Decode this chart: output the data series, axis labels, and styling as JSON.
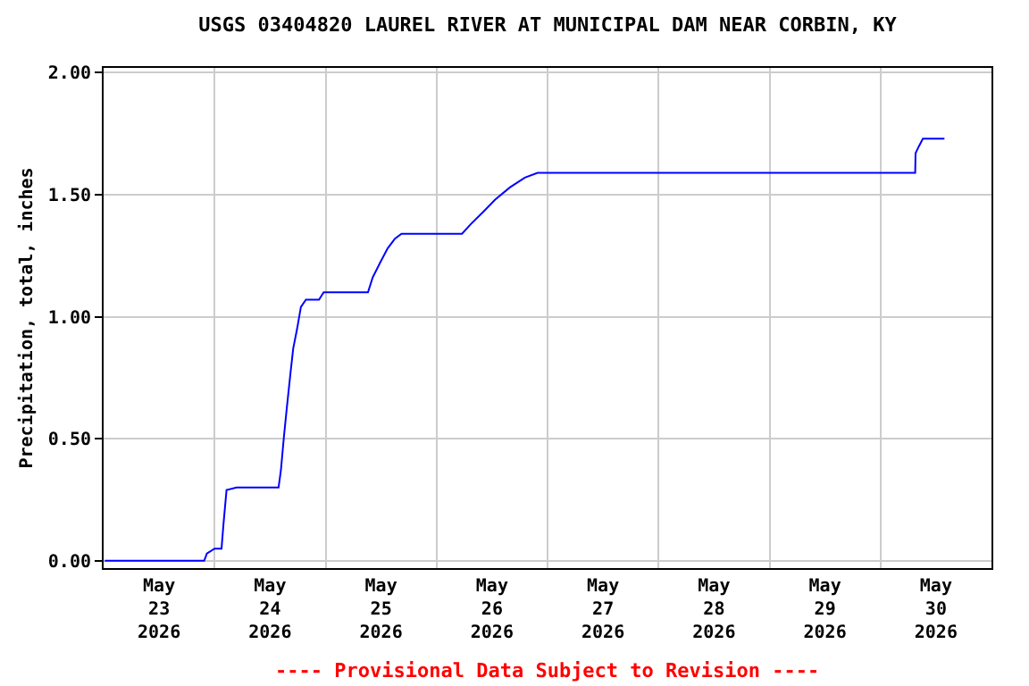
{
  "chart_data": {
    "type": "line",
    "title": "USGS 03404820 LAUREL RIVER AT MUNICIPAL DAM NEAR CORBIN, KY",
    "ylabel": "Precipitation, total, inches",
    "annotations": [
      "---- Provisional Data Subject to Revision ----"
    ],
    "x": [
      "2026-05-23T00:15",
      "2026-05-23T21:45",
      "2026-05-23T22:20",
      "2026-05-24T00:00",
      "2026-05-24T01:30",
      "2026-05-24T01:55",
      "2026-05-24T02:35",
      "2026-05-24T04:45",
      "2026-05-24T13:50",
      "2026-05-24T14:20",
      "2026-05-24T15:00",
      "2026-05-24T15:35",
      "2026-05-24T16:25",
      "2026-05-24T17:00",
      "2026-05-24T17:50",
      "2026-05-24T18:40",
      "2026-05-24T19:45",
      "2026-05-24T22:35",
      "2026-05-24T23:35",
      "2026-05-25T09:10",
      "2026-05-25T10:10",
      "2026-05-25T11:45",
      "2026-05-25T13:25",
      "2026-05-25T15:00",
      "2026-05-25T16:25",
      "2026-05-26T05:30",
      "2026-05-26T07:25",
      "2026-05-26T10:05",
      "2026-05-26T12:40",
      "2026-05-26T15:50",
      "2026-05-26T19:05",
      "2026-05-26T21:50",
      "2026-05-30T07:30",
      "2026-05-30T07:35",
      "2026-05-30T08:20",
      "2026-05-30T09:10",
      "2026-05-30T13:50"
    ],
    "series": [
      {
        "color": "#0000ff",
        "values": [
          0,
          0,
          0.03,
          0.05,
          0.05,
          0.15,
          0.29,
          0.3,
          0.3,
          0.37,
          0.51,
          0.62,
          0.77,
          0.87,
          0.95,
          1.04,
          1.07,
          1.07,
          1.1,
          1.1,
          1.16,
          1.22,
          1.28,
          1.32,
          1.34,
          1.34,
          1.38,
          1.43,
          1.48,
          1.53,
          1.57,
          1.59,
          1.59,
          1.67,
          1.7,
          1.73,
          1.73
        ]
      }
    ],
    "xlim": [
      "2026-05-23",
      "2026-05-31"
    ],
    "xticks": [
      {
        "value": "2026-05-23T12:00",
        "label": "May\n23\n2026"
      },
      {
        "value": "2026-05-24T12:00",
        "label": "May\n24\n2026"
      },
      {
        "value": "2026-05-25T12:00",
        "label": "May\n25\n2026"
      },
      {
        "value": "2026-05-26T12:00",
        "label": "May\n26\n2026"
      },
      {
        "value": "2026-05-27T12:00",
        "label": "May\n27\n2026"
      },
      {
        "value": "2026-05-28T12:00",
        "label": "May\n28\n2026"
      },
      {
        "value": "2026-05-29T12:00",
        "label": "May\n29\n2026"
      },
      {
        "value": "2026-05-30T12:00",
        "label": "May\n30\n2026"
      }
    ],
    "ylim": [
      -0.03,
      2.02
    ],
    "yticks": [
      {
        "value": 0,
        "label": "0.00"
      },
      {
        "value": 0.5,
        "label": "0.50"
      },
      {
        "value": 1,
        "label": "1.00"
      },
      {
        "value": 1.5,
        "label": "1.50"
      },
      {
        "value": 2,
        "label": "2.00"
      }
    ],
    "grid": true,
    "marker": "none",
    "line_style": "solid"
  }
}
